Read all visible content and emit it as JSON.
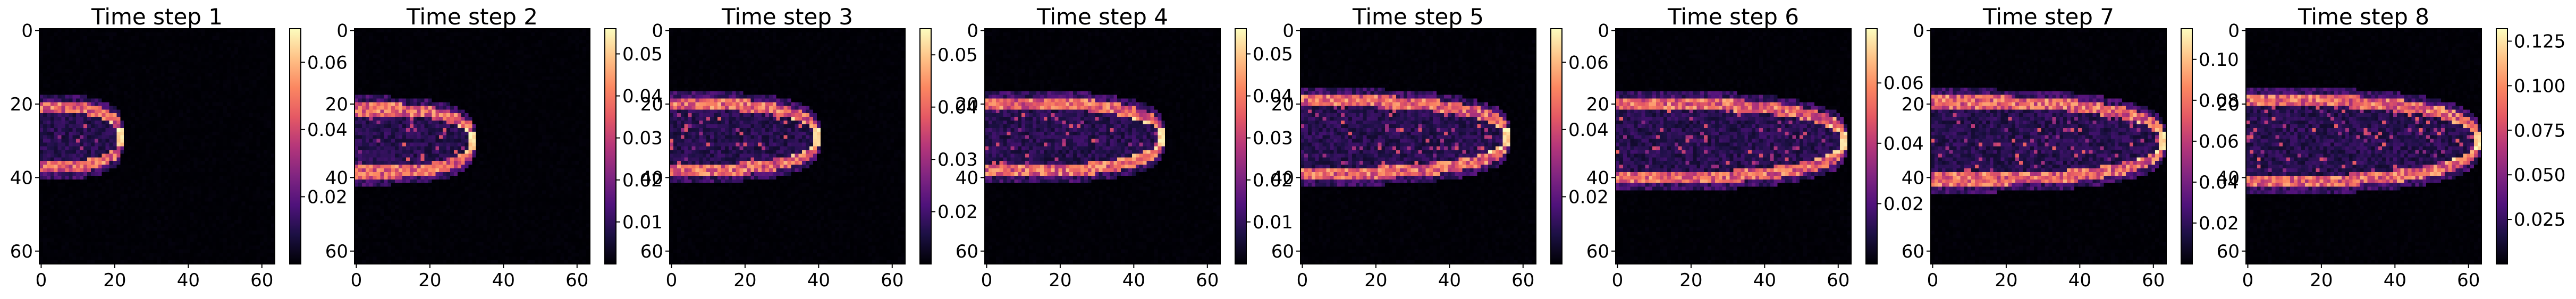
{
  "chart_data": [
    {
      "type": "heatmap",
      "title": "Time step 1",
      "x_ticks": [
        "0",
        "20",
        "40",
        "60"
      ],
      "y_ticks": [
        "0",
        "20",
        "40",
        "60"
      ],
      "colorbar_ticks": [
        "0.02",
        "0.04",
        "0.06"
      ],
      "colorbar_values": [
        0.02,
        0.04,
        0.06
      ],
      "vmin": 0.0,
      "vmax": 0.07,
      "colormap": "magma",
      "front_x": [
        0,
        22
      ],
      "front_y_center": 29,
      "max_value": 0.07
    },
    {
      "type": "heatmap",
      "title": "Time step 2",
      "x_ticks": [
        "0",
        "20",
        "40",
        "60"
      ],
      "y_ticks": [
        "0",
        "20",
        "40",
        "60"
      ],
      "colorbar_ticks": [
        "0.01",
        "0.02",
        "0.03",
        "0.04",
        "0.05"
      ],
      "colorbar_values": [
        0.01,
        0.02,
        0.03,
        0.04,
        0.05
      ],
      "vmin": 0.0,
      "vmax": 0.056,
      "colormap": "magma",
      "front_x": [
        0,
        32
      ],
      "front_y_center": 30,
      "max_value": 0.056
    },
    {
      "type": "heatmap",
      "title": "Time step 3",
      "x_ticks": [
        "0",
        "20",
        "40",
        "60"
      ],
      "y_ticks": [
        "0",
        "20",
        "40",
        "60"
      ],
      "colorbar_ticks": [
        "0.02",
        "0.03",
        "0.04",
        "0.05"
      ],
      "colorbar_values": [
        0.02,
        0.03,
        0.04,
        0.05
      ],
      "vmin": 0.01,
      "vmax": 0.055,
      "colormap": "magma",
      "front_x": [
        0,
        40
      ],
      "front_y_center": 29,
      "max_value": 0.055
    },
    {
      "type": "heatmap",
      "title": "Time step 4",
      "x_ticks": [
        "0",
        "20",
        "40",
        "60"
      ],
      "y_ticks": [
        "0",
        "20",
        "40",
        "60"
      ],
      "colorbar_ticks": [
        "0.01",
        "0.02",
        "0.03",
        "0.04",
        "0.05"
      ],
      "colorbar_values": [
        0.01,
        0.02,
        0.03,
        0.04,
        0.05
      ],
      "vmin": 0.0,
      "vmax": 0.056,
      "colormap": "magma",
      "front_x": [
        0,
        48
      ],
      "front_y_center": 29,
      "max_value": 0.056
    },
    {
      "type": "heatmap",
      "title": "Time step 5",
      "x_ticks": [
        "0",
        "20",
        "40",
        "60"
      ],
      "y_ticks": [
        "0",
        "20",
        "40",
        "60"
      ],
      "colorbar_ticks": [
        "0.02",
        "0.04",
        "0.06"
      ],
      "colorbar_values": [
        0.02,
        0.04,
        0.06
      ],
      "vmin": 0.0,
      "vmax": 0.07,
      "colormap": "magma",
      "front_x": [
        0,
        56
      ],
      "front_y_center": 29,
      "max_value": 0.07
    },
    {
      "type": "heatmap",
      "title": "Time step 6",
      "x_ticks": [
        "0",
        "20",
        "40",
        "60"
      ],
      "y_ticks": [
        "0",
        "20",
        "40",
        "60"
      ],
      "colorbar_ticks": [
        "0.02",
        "0.04",
        "0.06"
      ],
      "colorbar_values": [
        0.02,
        0.04,
        0.06
      ],
      "vmin": 0.0,
      "vmax": 0.078,
      "colormap": "magma",
      "front_x": [
        0,
        62
      ],
      "front_y_center": 30,
      "max_value": 0.078
    },
    {
      "type": "heatmap",
      "title": "Time step 7",
      "x_ticks": [
        "0",
        "20",
        "40",
        "60"
      ],
      "y_ticks": [
        "0",
        "20",
        "40",
        "60"
      ],
      "colorbar_ticks": [
        "0.02",
        "0.04",
        "0.06",
        "0.08",
        "0.10"
      ],
      "colorbar_values": [
        0.02,
        0.04,
        0.06,
        0.08,
        0.1
      ],
      "vmin": 0.0,
      "vmax": 0.115,
      "colormap": "magma",
      "front_x": [
        0,
        63
      ],
      "front_y_center": 30,
      "max_value": 0.115
    },
    {
      "type": "heatmap",
      "title": "Time step 8",
      "x_ticks": [
        "0",
        "20",
        "40",
        "60"
      ],
      "y_ticks": [
        "0",
        "20",
        "40",
        "60"
      ],
      "colorbar_ticks": [
        "0.025",
        "0.050",
        "0.075",
        "0.100",
        "0.125"
      ],
      "colorbar_values": [
        0.025,
        0.05,
        0.075,
        0.1,
        0.125
      ],
      "vmin": 0.0,
      "vmax": 0.132,
      "colormap": "magma",
      "front_x": [
        0,
        63
      ],
      "front_y_center": 30,
      "max_value": 0.132
    }
  ],
  "grid": false,
  "colormap_stops": [
    "#000004",
    "#1c1044",
    "#4f127b",
    "#812581",
    "#b5367a",
    "#e55964",
    "#fb8761",
    "#fec287",
    "#fcfdbf"
  ]
}
